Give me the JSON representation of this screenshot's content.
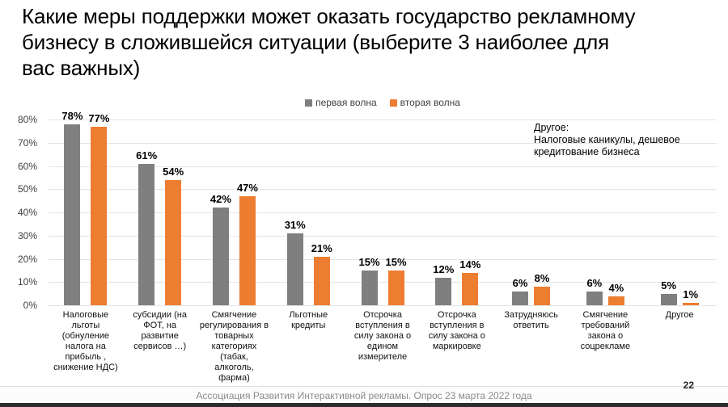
{
  "title": "Какие меры поддержки может оказать государство рекламному\nбизнесу в сложившейся ситуации (выберите 3 наиболее для\nвас важных)",
  "annotation": "Другое:\nНалоговые каникулы, дешевое\nкредитование бизнеса",
  "footer": {
    "source": "Ассоциация Развития Интерактивной рекламы. Опрос 23 марта 2022 года",
    "page": "22"
  },
  "colors": {
    "series1": "#7f7f7f",
    "series2": "#ed7d31",
    "gridline": "#e4e4e4"
  },
  "chart_data": {
    "type": "bar",
    "categories": [
      "Налоговые льготы (обнуление налога на прибыль , снижение НДС)",
      "субсидии (на ФОТ, на развитие сервисов …)",
      "Смягчение регулирования в товарных категориях (табак, алкоголь, фарма)",
      "Льготные кредиты",
      "Отсрочка вступления в силу закона о едином измерителе",
      "Отсрочка вступления в силу закона о маркировке",
      "Затрудняюсь ответить",
      "Смягчение требований закона о соцрекламе",
      "Другое"
    ],
    "series": [
      {
        "name": "первая волна",
        "color": "#7f7f7f",
        "values": [
          78,
          61,
          42,
          31,
          15,
          12,
          6,
          6,
          5
        ]
      },
      {
        "name": "вторая волна",
        "color": "#ed7d31",
        "values": [
          77,
          54,
          47,
          21,
          15,
          14,
          8,
          4,
          1
        ]
      }
    ],
    "title": "Какие меры поддержки может оказать государство рекламному бизнесу в сложившейся ситуации (выберите 3 наиболее для вас важных)",
    "xlabel": "",
    "ylabel": "",
    "ylim": [
      0,
      80
    ],
    "ytick_labels": [
      "0%",
      "10%",
      "20%",
      "30%",
      "40%",
      "50%",
      "60%",
      "70%",
      "80%"
    ],
    "value_suffix": "%",
    "grid": true,
    "legend_position": "top"
  }
}
